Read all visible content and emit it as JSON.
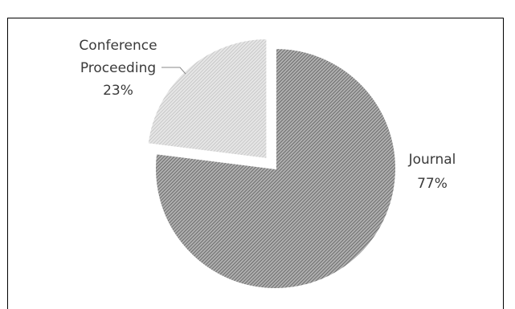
{
  "chart_data": {
    "type": "pie",
    "title": "",
    "slices": [
      {
        "label": "Journal",
        "value": 77,
        "value_label": "77%",
        "color": "#7a7a7a",
        "pattern": "dense-diagonal-hatch",
        "exploded": false
      },
      {
        "label": "Conference Proceeding",
        "label_lines": [
          "Conference",
          "Proceeding"
        ],
        "value": 23,
        "value_label": "23%",
        "color": "#d2d2d2",
        "pattern": "light-diagonal-hatch",
        "exploded": true
      }
    ],
    "legend": "none",
    "data_labels": "outside-with-leader-for-small-slice"
  }
}
